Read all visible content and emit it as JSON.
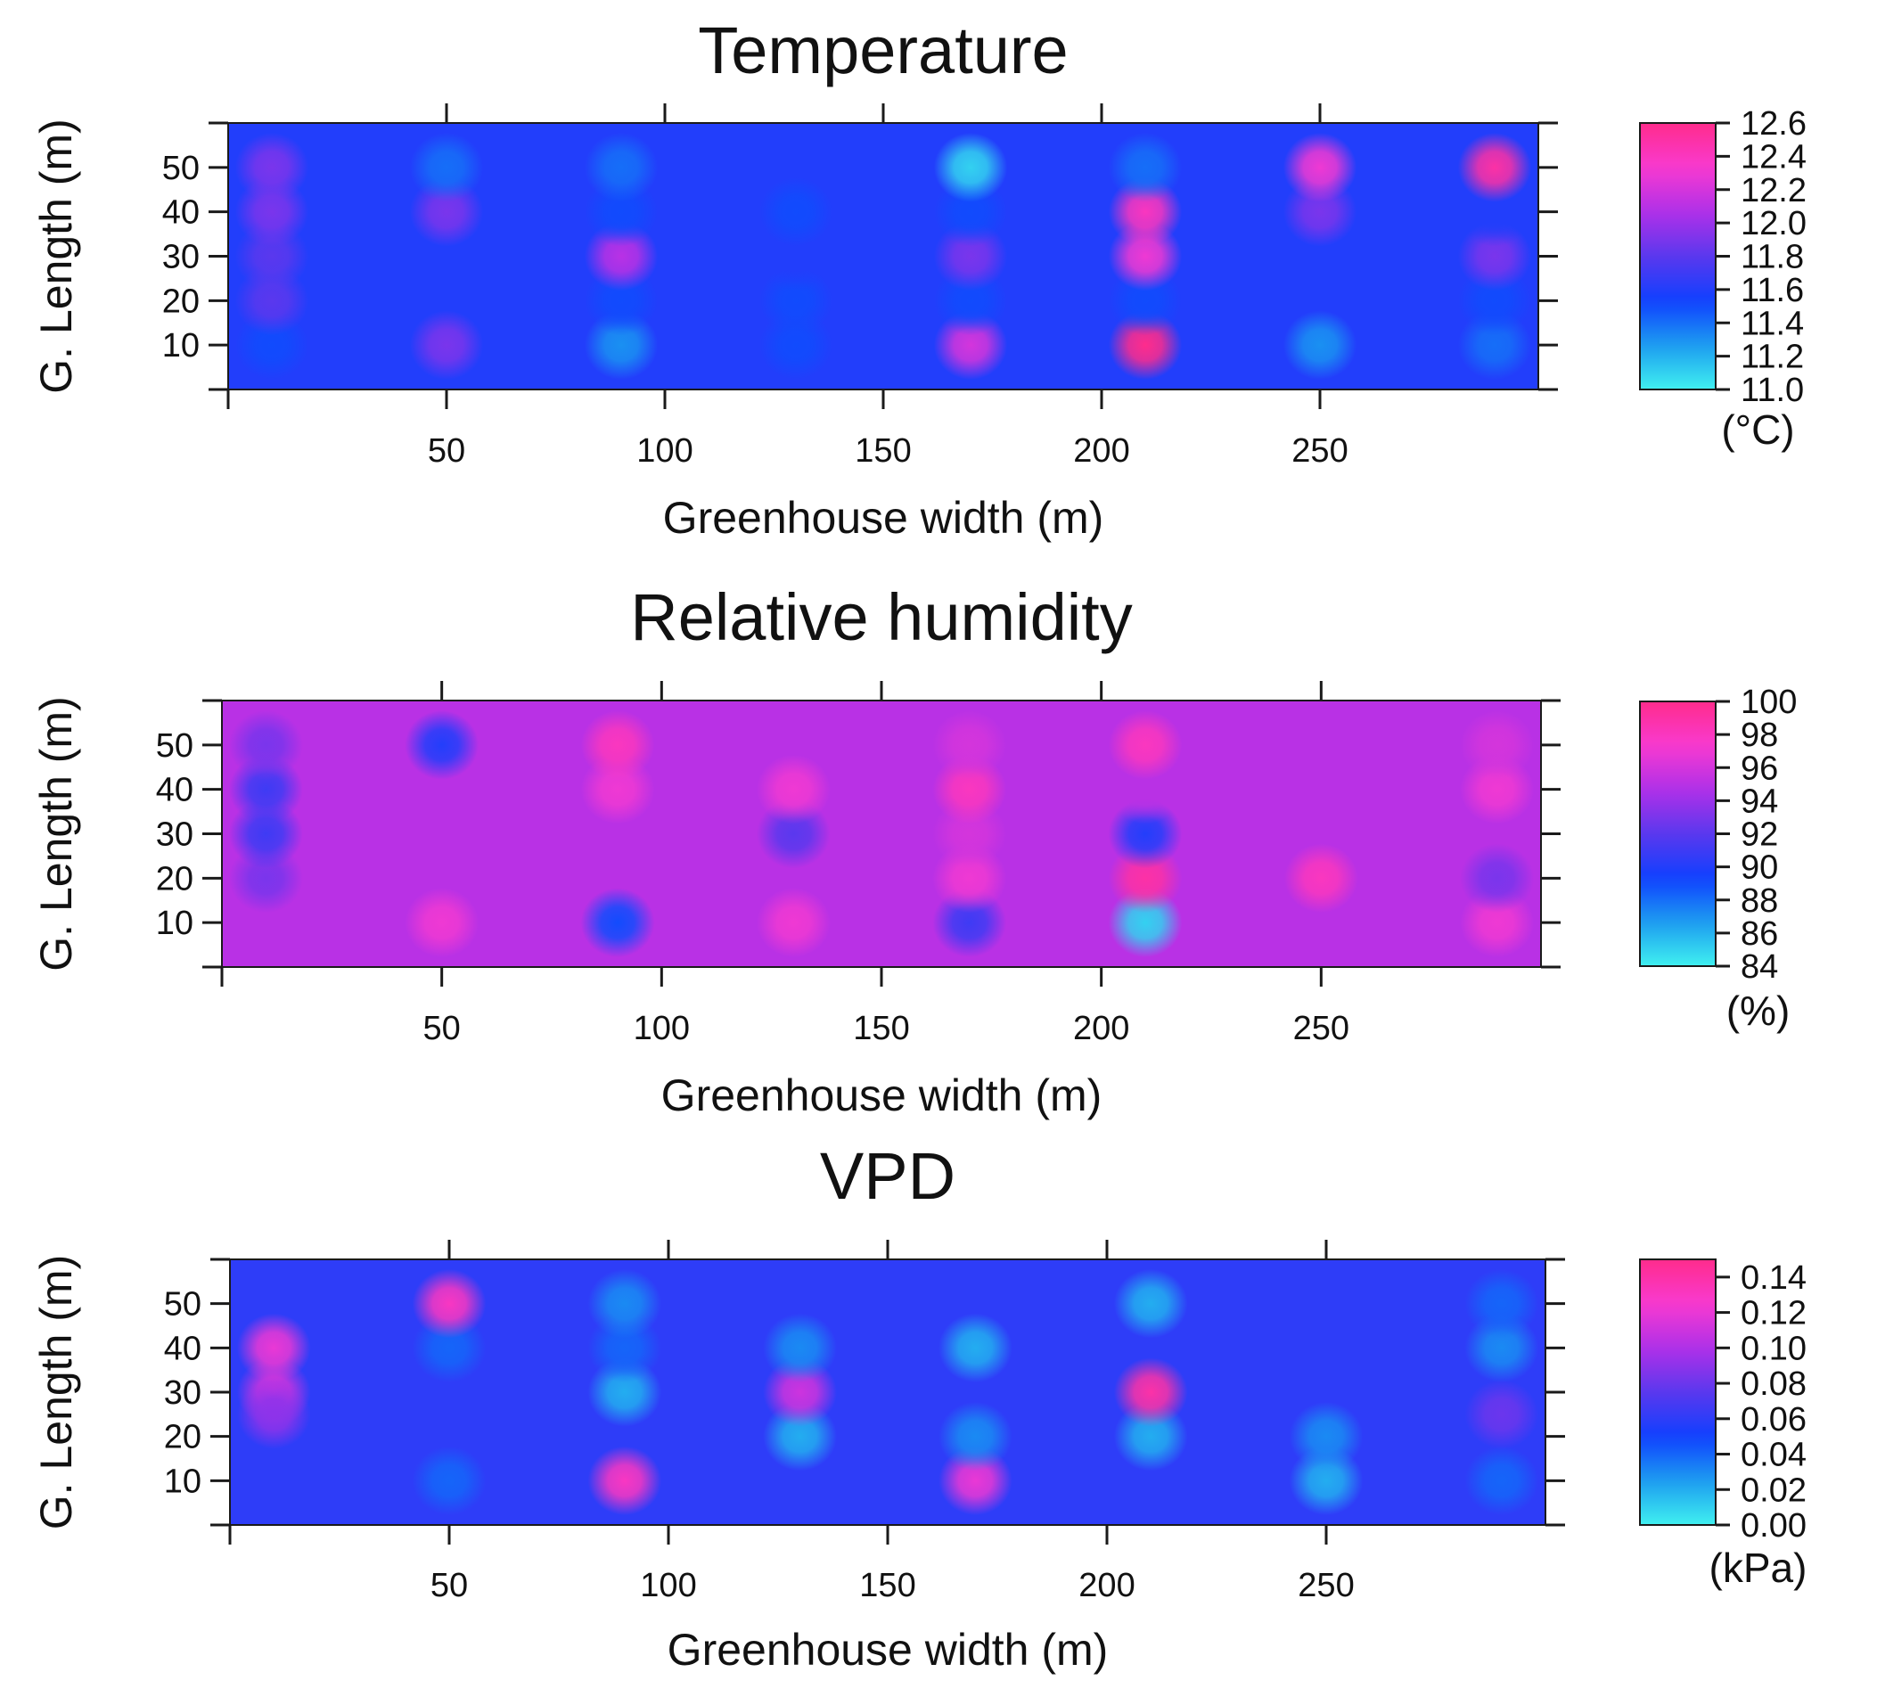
{
  "colors": {
    "background": "#ffffff",
    "axis": "#1a1a1a",
    "scale": [
      "#40f0f0",
      "#1c9cf0",
      "#1040ff",
      "#5a38ee",
      "#b030e8",
      "#f83ad0",
      "#ff2c8c"
    ]
  },
  "chart_data": [
    {
      "type": "heatmap",
      "id": "temp",
      "title": "Temperature",
      "xlabel": "Greenhouse width (m)",
      "ylabel": "G. Length (m)",
      "xlim": [
        0,
        300
      ],
      "ylim": [
        0,
        60
      ],
      "x_ticks": [
        50,
        100,
        150,
        200,
        250
      ],
      "y_ticks": [
        10,
        20,
        30,
        40,
        50
      ],
      "colorbar": {
        "unit": "(°C)",
        "range": [
          11.0,
          12.6
        ],
        "ticks": [
          "12.6",
          "12.4",
          "12.2",
          "12.0",
          "11.8",
          "11.6",
          "11.4",
          "11.2",
          "11.0"
        ]
      },
      "background_value": 11.6,
      "hotspots": [
        {
          "x": 10,
          "y": 10,
          "v": 11.5
        },
        {
          "x": 10,
          "y": 20,
          "v": 11.8
        },
        {
          "x": 10,
          "y": 30,
          "v": 11.8
        },
        {
          "x": 10,
          "y": 40,
          "v": 11.9
        },
        {
          "x": 10,
          "y": 50,
          "v": 11.9
        },
        {
          "x": 50,
          "y": 10,
          "v": 11.9
        },
        {
          "x": 50,
          "y": 40,
          "v": 11.9
        },
        {
          "x": 50,
          "y": 50,
          "v": 11.4
        },
        {
          "x": 90,
          "y": 10,
          "v": 11.3
        },
        {
          "x": 90,
          "y": 20,
          "v": 11.5
        },
        {
          "x": 90,
          "y": 30,
          "v": 12.1
        },
        {
          "x": 90,
          "y": 40,
          "v": 11.5
        },
        {
          "x": 90,
          "y": 50,
          "v": 11.4
        },
        {
          "x": 130,
          "y": 10,
          "v": 11.5
        },
        {
          "x": 130,
          "y": 20,
          "v": 11.5
        },
        {
          "x": 130,
          "y": 30,
          "v": 11.6
        },
        {
          "x": 130,
          "y": 40,
          "v": 11.5
        },
        {
          "x": 170,
          "y": 10,
          "v": 12.2
        },
        {
          "x": 170,
          "y": 20,
          "v": 11.5
        },
        {
          "x": 170,
          "y": 30,
          "v": 11.9
        },
        {
          "x": 170,
          "y": 40,
          "v": 11.5
        },
        {
          "x": 170,
          "y": 50,
          "v": 11.1
        },
        {
          "x": 210,
          "y": 10,
          "v": 12.6
        },
        {
          "x": 210,
          "y": 20,
          "v": 11.5
        },
        {
          "x": 210,
          "y": 30,
          "v": 12.3
        },
        {
          "x": 210,
          "y": 40,
          "v": 12.4
        },
        {
          "x": 210,
          "y": 50,
          "v": 11.4
        },
        {
          "x": 250,
          "y": 10,
          "v": 11.3
        },
        {
          "x": 250,
          "y": 40,
          "v": 11.9
        },
        {
          "x": 250,
          "y": 50,
          "v": 12.3
        },
        {
          "x": 290,
          "y": 10,
          "v": 11.4
        },
        {
          "x": 290,
          "y": 20,
          "v": 11.5
        },
        {
          "x": 290,
          "y": 30,
          "v": 11.9
        },
        {
          "x": 290,
          "y": 40,
          "v": 11.6
        },
        {
          "x": 290,
          "y": 50,
          "v": 12.5
        }
      ]
    },
    {
      "type": "heatmap",
      "id": "rh",
      "title": "Relative humidity",
      "xlabel": "Greenhouse width (m)",
      "ylabel": "G. Length (m)",
      "xlim": [
        0,
        300
      ],
      "ylim": [
        0,
        60
      ],
      "x_ticks": [
        50,
        100,
        150,
        200,
        250
      ],
      "y_ticks": [
        10,
        20,
        30,
        40,
        50
      ],
      "colorbar": {
        "unit": "(%)",
        "range": [
          84,
          100
        ],
        "ticks": [
          "100",
          "98",
          "96",
          "94",
          "92",
          "90",
          "88",
          "86",
          "84"
        ]
      },
      "background_value": 95,
      "hotspots": [
        {
          "x": 10,
          "y": 20,
          "v": 93
        },
        {
          "x": 10,
          "y": 30,
          "v": 91
        },
        {
          "x": 10,
          "y": 40,
          "v": 91
        },
        {
          "x": 10,
          "y": 50,
          "v": 93
        },
        {
          "x": 50,
          "y": 10,
          "v": 97
        },
        {
          "x": 50,
          "y": 50,
          "v": 90
        },
        {
          "x": 90,
          "y": 10,
          "v": 89
        },
        {
          "x": 90,
          "y": 40,
          "v": 97
        },
        {
          "x": 90,
          "y": 50,
          "v": 98
        },
        {
          "x": 130,
          "y": 10,
          "v": 97
        },
        {
          "x": 130,
          "y": 30,
          "v": 92
        },
        {
          "x": 130,
          "y": 40,
          "v": 97
        },
        {
          "x": 170,
          "y": 10,
          "v": 91
        },
        {
          "x": 170,
          "y": 20,
          "v": 97
        },
        {
          "x": 170,
          "y": 30,
          "v": 96
        },
        {
          "x": 170,
          "y": 40,
          "v": 98
        },
        {
          "x": 170,
          "y": 50,
          "v": 96
        },
        {
          "x": 210,
          "y": 10,
          "v": 85
        },
        {
          "x": 210,
          "y": 20,
          "v": 99
        },
        {
          "x": 210,
          "y": 30,
          "v": 90
        },
        {
          "x": 210,
          "y": 40,
          "v": 95
        },
        {
          "x": 210,
          "y": 50,
          "v": 98
        },
        {
          "x": 250,
          "y": 20,
          "v": 98
        },
        {
          "x": 290,
          "y": 10,
          "v": 97
        },
        {
          "x": 290,
          "y": 20,
          "v": 93
        },
        {
          "x": 290,
          "y": 40,
          "v": 97
        },
        {
          "x": 290,
          "y": 50,
          "v": 96
        }
      ]
    },
    {
      "type": "heatmap",
      "id": "vpd",
      "title": "VPD",
      "xlabel": "Greenhouse width (m)",
      "ylabel": "G. Length (m)",
      "xlim": [
        0,
        300
      ],
      "ylim": [
        0,
        60
      ],
      "x_ticks": [
        50,
        100,
        150,
        200,
        250
      ],
      "y_ticks": [
        10,
        20,
        30,
        40,
        50
      ],
      "colorbar": {
        "unit": "(kPa)",
        "range": [
          0.0,
          0.15
        ],
        "ticks": [
          "0.14",
          "0.12",
          "0.10",
          "0.08",
          "0.06",
          "0.04",
          "0.02",
          "0.00"
        ]
      },
      "background_value": 0.06,
      "hotspots": [
        {
          "x": 10,
          "y": 30,
          "v": 0.11
        },
        {
          "x": 10,
          "y": 40,
          "v": 0.12
        },
        {
          "x": 10,
          "y": 25,
          "v": 0.09
        },
        {
          "x": 50,
          "y": 10,
          "v": 0.04
        },
        {
          "x": 50,
          "y": 40,
          "v": 0.04
        },
        {
          "x": 50,
          "y": 50,
          "v": 0.13
        },
        {
          "x": 90,
          "y": 10,
          "v": 0.13
        },
        {
          "x": 90,
          "y": 30,
          "v": 0.02
        },
        {
          "x": 90,
          "y": 40,
          "v": 0.04
        },
        {
          "x": 90,
          "y": 50,
          "v": 0.03
        },
        {
          "x": 130,
          "y": 20,
          "v": 0.02
        },
        {
          "x": 130,
          "y": 30,
          "v": 0.11
        },
        {
          "x": 130,
          "y": 40,
          "v": 0.03
        },
        {
          "x": 170,
          "y": 10,
          "v": 0.12
        },
        {
          "x": 170,
          "y": 20,
          "v": 0.03
        },
        {
          "x": 170,
          "y": 40,
          "v": 0.02
        },
        {
          "x": 210,
          "y": 20,
          "v": 0.02
        },
        {
          "x": 210,
          "y": 30,
          "v": 0.14
        },
        {
          "x": 210,
          "y": 50,
          "v": 0.02
        },
        {
          "x": 250,
          "y": 10,
          "v": 0.02
        },
        {
          "x": 250,
          "y": 20,
          "v": 0.03
        },
        {
          "x": 290,
          "y": 10,
          "v": 0.04
        },
        {
          "x": 290,
          "y": 25,
          "v": 0.08
        },
        {
          "x": 290,
          "y": 40,
          "v": 0.03
        },
        {
          "x": 290,
          "y": 50,
          "v": 0.04
        }
      ]
    }
  ]
}
